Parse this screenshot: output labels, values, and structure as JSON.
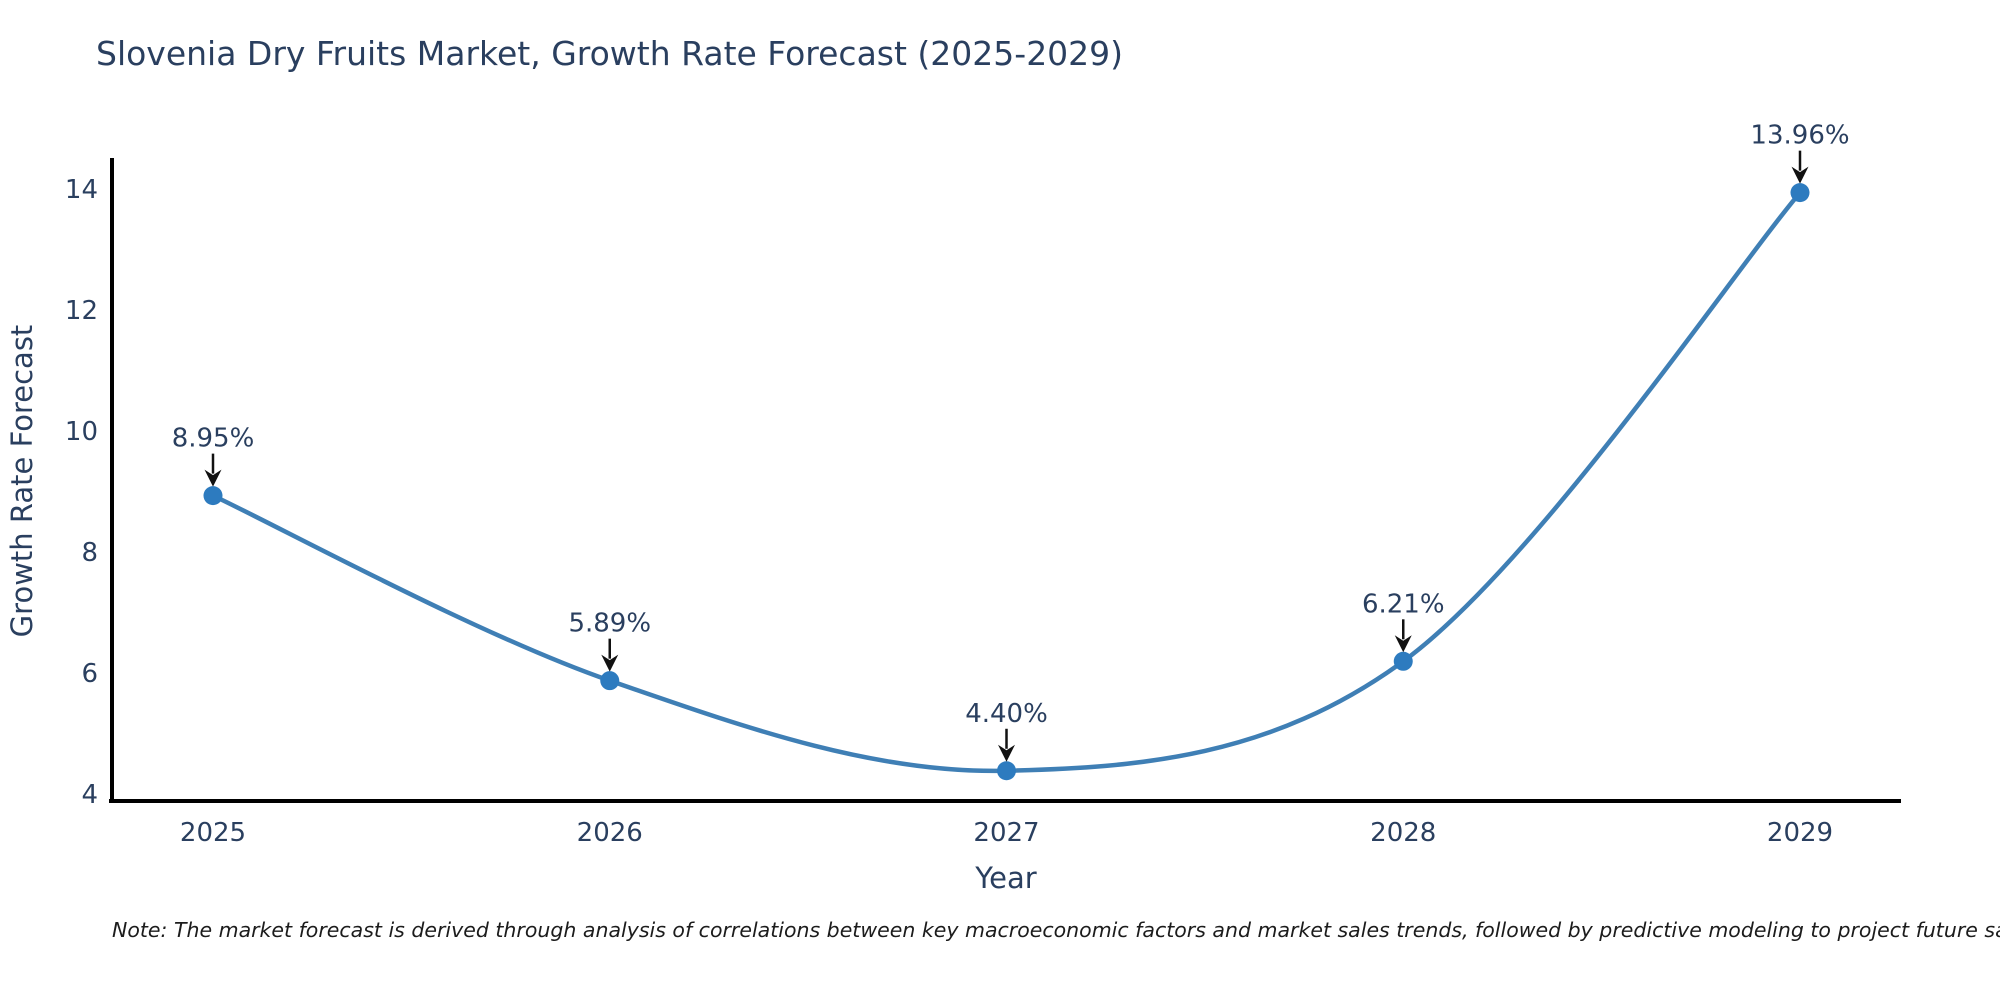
{
  "title": "Slovenia Dry Fruits Market, Growth Rate Forecast (2025-2029)",
  "note": "Note: The market forecast is derived through analysis of correlations between key macroeconomic factors and market sales trends, followed by predictive modeling to project future sales",
  "chart_data": {
    "type": "line",
    "line_shape": "spline",
    "title": "Slovenia Dry Fruits Market, Growth Rate Forecast (2025-2029)",
    "xlabel": "Year",
    "ylabel": "Growth Rate Forecast",
    "categories": [
      "2025",
      "2026",
      "2027",
      "2028",
      "2029"
    ],
    "values": [
      8.95,
      5.89,
      4.4,
      6.21,
      13.96
    ],
    "point_labels": [
      "8.95%",
      "5.89%",
      "4.40%",
      "6.21%",
      "13.96%"
    ],
    "ylim": [
      3.9,
      14.5
    ],
    "yticks": [
      4,
      6,
      8,
      10,
      12,
      14
    ],
    "grid": false,
    "legend": false,
    "annotations_have_arrows": true,
    "colors": {
      "line": "#3f7fb5",
      "marker": "#2d7bbf",
      "annotation_arrow": "#111111",
      "axis_line": "#000000",
      "text": "#2a3f5f",
      "note_text": "#1c1c1c"
    }
  }
}
